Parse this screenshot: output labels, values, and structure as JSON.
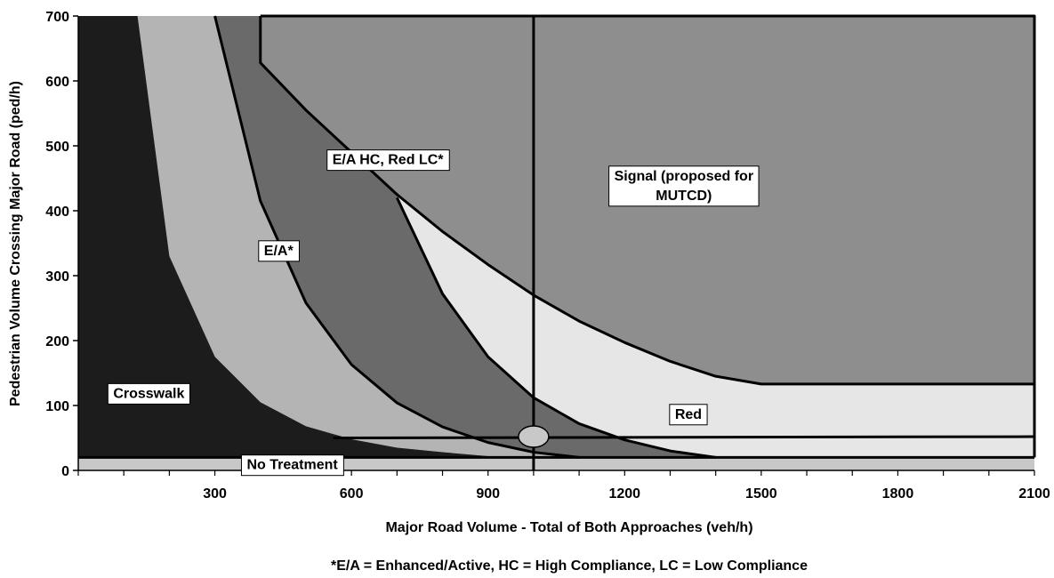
{
  "chart_data": {
    "type": "area",
    "xlabel": "Major Road Volume - Total of Both Approaches (veh/h)",
    "ylabel": "Pedestrian Volume Crossing Major Road (ped/h)",
    "xlim": [
      0,
      2100
    ],
    "ylim": [
      0,
      700
    ],
    "x_ticks": [
      300,
      600,
      900,
      1200,
      1500,
      1800,
      2100
    ],
    "y_ticks": [
      0,
      100,
      200,
      300,
      400,
      500,
      600,
      700
    ],
    "grid": false,
    "footnote": "*E/A = Enhanced/Active, HC = High Compliance, LC = Low Compliance",
    "colors": {
      "no_treatment": "#c8c8c8",
      "crosswalk": "#1c1c1c",
      "ea": "#b4b4b4",
      "ea_hc_red_lc": "#6a6a6a",
      "red": "#e6e6e6",
      "signal": "#8e8e8e",
      "boundary": "#000000",
      "marker": "#c8c8c8"
    },
    "regions": [
      {
        "name": "No Treatment",
        "label_at": [
          470,
          10
        ]
      },
      {
        "name": "Crosswalk",
        "label_at": [
          155,
          120
        ]
      },
      {
        "name": "E/A*",
        "label_at": [
          440,
          340
        ]
      },
      {
        "name": "E/A HC, Red LC*",
        "label_at": [
          680,
          480
        ]
      },
      {
        "name": "Red",
        "label_at": [
          1340,
          88
        ]
      },
      {
        "name": "Signal (proposed for\nMUTCD)",
        "label_at": [
          1330,
          440
        ]
      }
    ],
    "boundaries": {
      "crosswalk_ea": [
        [
          130,
          700
        ],
        [
          200,
          330
        ],
        [
          300,
          175
        ],
        [
          400,
          105
        ],
        [
          500,
          68
        ],
        [
          600,
          48
        ],
        [
          700,
          35
        ],
        [
          800,
          28
        ],
        [
          900,
          22
        ],
        [
          1000,
          20
        ]
      ],
      "ea_ea_hc": [
        [
          300,
          700
        ],
        [
          400,
          415
        ],
        [
          500,
          258
        ],
        [
          600,
          163
        ],
        [
          700,
          104
        ],
        [
          800,
          67
        ],
        [
          900,
          43
        ],
        [
          1000,
          28
        ],
        [
          1100,
          20
        ]
      ],
      "ea_hc_red": [
        [
          700,
          420
        ],
        [
          800,
          272
        ],
        [
          900,
          175
        ],
        [
          1000,
          112
        ],
        [
          1100,
          72
        ],
        [
          1200,
          47
        ],
        [
          1300,
          30
        ],
        [
          1400,
          20
        ]
      ],
      "red_signal": [
        [
          400,
          700
        ],
        [
          400,
          628
        ],
        [
          500,
          555
        ],
        [
          600,
          490
        ],
        [
          700,
          425
        ],
        [
          800,
          368
        ],
        [
          900,
          317
        ],
        [
          1000,
          270
        ],
        [
          1100,
          230
        ],
        [
          1200,
          197
        ],
        [
          1300,
          168
        ],
        [
          1400,
          145
        ],
        [
          1500,
          133
        ],
        [
          2100,
          133
        ]
      ],
      "mid_line": [
        [
          560,
          50
        ],
        [
          2100,
          52
        ]
      ],
      "no_treatment_top": [
        [
          0,
          20
        ],
        [
          2100,
          20
        ]
      ]
    },
    "reference_line_x": 1000,
    "marker_point": [
      1000,
      52
    ]
  }
}
